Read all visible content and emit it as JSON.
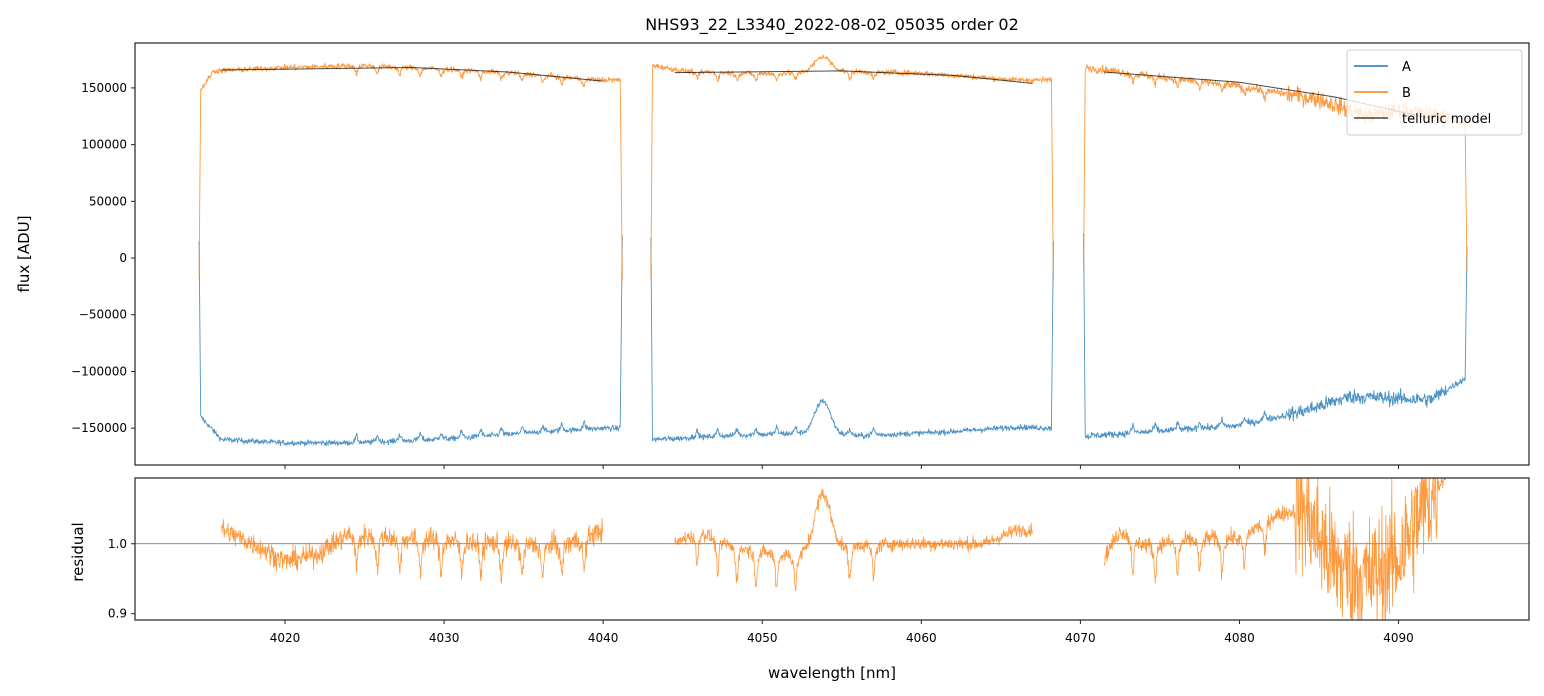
{
  "chart_data": [
    {
      "type": "line",
      "panel": "top",
      "title": "NHS93_22_L3340_2022-08-02_05035  order 02",
      "xlabel": "",
      "ylabel": "flux [ADU]",
      "xlim": [
        4010.57,
        4098.2
      ],
      "ylim": [
        -182500,
        189600
      ],
      "xticks": [
        4020,
        4030,
        4040,
        4050,
        4060,
        4070,
        4080,
        4090
      ],
      "yticks": [
        -150000,
        -100000,
        -50000,
        0,
        50000,
        100000,
        150000
      ],
      "ytick_labels": [
        "−150000",
        "−100000",
        "−50000",
        "0",
        "50000",
        "100000",
        "150000"
      ],
      "legend": {
        "placement": "top-right",
        "entries": [
          "A",
          "B",
          "telluric model"
        ]
      },
      "colors": {
        "A": "#1f77b4",
        "B": "#ff7f0e",
        "telluric": "#000000"
      },
      "series": [
        {
          "name": "A",
          "segments": [
            {
              "range": [
                4014.6,
                4041.2
              ],
              "edges": [
                15000,
                20000
              ],
              "noise": 1200,
              "line_sign": 1,
              "line_depth": 6000,
              "points": [
                [
                  4014.7,
                  -140000
                ],
                [
                  4016,
                  -160000
                ],
                [
                  4020,
                  -163000
                ],
                [
                  4025,
                  -163000
                ],
                [
                  4030,
                  -160000
                ],
                [
                  4035,
                  -155000
                ],
                [
                  4040,
                  -150000
                ],
                [
                  4041.1,
                  -150000
                ]
              ]
            },
            {
              "range": [
                4043.0,
                4068.3
              ],
              "edges": [
                18000,
                15000
              ],
              "noise": 1200,
              "line_sign": 1,
              "line_depth": 6000,
              "points": [
                [
                  4043.1,
                  -160000
                ],
                [
                  4048,
                  -157000
                ],
                [
                  4052,
                  -155000
                ],
                [
                  4056,
                  -157000
                ],
                [
                  4062,
                  -153000
                ],
                [
                  4066,
                  -149000
                ],
                [
                  4068.2,
                  -150000
                ]
              ]
            },
            {
              "range": [
                4070.2,
                4094.3
              ],
              "edges": [
                22000,
                10000
              ],
              "noise": 1500,
              "line_sign": 1,
              "line_depth": 6000,
              "points": [
                [
                  4070.3,
                  -157000
                ],
                [
                  4075,
                  -153000
                ],
                [
                  4080,
                  -148000
                ],
                [
                  4084,
                  -135000
                ],
                [
                  4087,
                  -122000
                ],
                [
                  4092,
                  -125000
                ],
                [
                  4094.2,
                  -106000
                ]
              ]
            }
          ]
        },
        {
          "name": "B",
          "segments": [
            {
              "range": [
                4014.6,
                4041.2
              ],
              "edges": [
                -18000,
                -20000
              ],
              "noise": 1200,
              "line_sign": -1,
              "line_depth": 7000,
              "points": [
                [
                  4014.7,
                  148000
                ],
                [
                  4015.5,
                  165000
                ],
                [
                  4020,
                  168000
                ],
                [
                  4025,
                  170000
                ],
                [
                  4030,
                  167000
                ],
                [
                  4035,
                  163000
                ],
                [
                  4040,
                  157000
                ],
                [
                  4041.1,
                  157000
                ]
              ]
            },
            {
              "range": [
                4043.0,
                4068.3
              ],
              "edges": [
                -18000,
                -20000
              ],
              "noise": 1200,
              "line_sign": -1,
              "line_depth": 7000,
              "points": [
                [
                  4043.1,
                  170000
                ],
                [
                  4045,
                  165000
                ],
                [
                  4050,
                  163000
                ],
                [
                  4055,
                  165000
                ],
                [
                  4060,
                  163000
                ],
                [
                  4066,
                  157000
                ],
                [
                  4068.2,
                  157000
                ]
              ]
            },
            {
              "range": [
                4070.2,
                4094.3
              ],
              "edges": [
                -10000,
                -12000
              ],
              "noise": 1800,
              "line_sign": -1,
              "line_depth": 7000,
              "points": [
                [
                  4070.3,
                  168000
                ],
                [
                  4075,
                  160000
                ],
                [
                  4080,
                  152000
                ],
                [
                  4085,
                  140000
                ],
                [
                  4088,
                  125000
                ],
                [
                  4090,
                  130000
                ],
                [
                  4093,
                  125000
                ],
                [
                  4094.2,
                  118000
                ]
              ]
            }
          ]
        },
        {
          "name": "telluric model",
          "segments": [
            {
              "points": [
                [
                  4016,
                  165800
                ],
                [
                  4028,
                  168000
                ],
                [
                  4034,
                  164000
                ],
                [
                  4040,
                  156000
                ]
              ]
            },
            {
              "points": [
                [
                  4044.5,
                  163500
                ],
                [
                  4055,
                  165000
                ],
                [
                  4062,
                  161000
                ],
                [
                  4067,
                  154000
                ]
              ]
            },
            {
              "points": [
                [
                  4071.5,
                  164000
                ],
                [
                  4080,
                  155000
                ],
                [
                  4086,
                  142000
                ],
                [
                  4092,
                  123000
                ]
              ]
            }
          ]
        }
      ],
      "features": {
        "line_centers": [
          4024.5,
          4025.8,
          4027.2,
          4028.5,
          4029.8,
          4031.1,
          4032.3,
          4033.6,
          4034.9,
          4036.2,
          4037.4,
          4038.8,
          4045.9,
          4047.2,
          4048.4,
          4049.6,
          4050.9,
          4052.1,
          4055.5,
          4057.0,
          4073.3,
          4074.7,
          4076.1,
          4077.5,
          4078.9,
          4080.3,
          4081.6
        ],
        "emission_bump": {
          "center": 4053.8,
          "width": 0.7,
          "A_amplitude": 30000,
          "B_amplitude": 13000
        }
      }
    },
    {
      "type": "line",
      "panel": "bottom",
      "xlabel": "wavelength [nm]",
      "ylabel": "residual",
      "xlim": [
        4010.57,
        4098.2
      ],
      "ylim": [
        0.891,
        1.094
      ],
      "xticks": [
        4020,
        4030,
        4040,
        4050,
        4060,
        4070,
        4080,
        4090
      ],
      "yticks": [
        0.9,
        1.0
      ],
      "ytick_labels": [
        "0.9",
        "1.0"
      ],
      "reference_line": 1.0,
      "series": [
        {
          "name": "B residual",
          "color": "#ff7f0e",
          "segments": [
            {
              "range": [
                4016.0,
                4040.0
              ],
              "noise": 0.008,
              "line_depth": 0.05,
              "points": [
                [
                  4016,
                  1.02
                ],
                [
                  4018,
                  1.0
                ],
                [
                  4020,
                  0.975
                ],
                [
                  4022,
                  0.985
                ],
                [
                  4024,
                  1.015
                ],
                [
                  4028,
                  1.01
                ],
                [
                  4032,
                  1.005
                ],
                [
                  4036,
                  1.0
                ],
                [
                  4038,
                  1.005
                ],
                [
                  4040,
                  1.02
                ]
              ]
            },
            {
              "range": [
                4044.5,
                4067.0
              ],
              "noise": 0.005,
              "line_depth": 0.05,
              "points": [
                [
                  4044.5,
                  1.0
                ],
                [
                  4046,
                  1.02
                ],
                [
                  4048,
                  1.0
                ],
                [
                  4050,
                  0.99
                ],
                [
                  4052,
                  0.985
                ],
                [
                  4056,
                  1.0
                ],
                [
                  4064,
                  1.0
                ],
                [
                  4066,
                  1.02
                ],
                [
                  4067,
                  1.02
                ]
              ]
            },
            {
              "range": [
                4071.5,
                4093.0
              ],
              "noise": 0.006,
              "line_depth": 0.05,
              "points": [
                [
                  4071.5,
                  0.98
                ],
                [
                  4072.5,
                  1.02
                ],
                [
                  4074,
                  1.0
                ],
                [
                  4078,
                  1.01
                ],
                [
                  4080,
                  1.01
                ],
                [
                  4082,
                  1.04
                ],
                [
                  4084,
                  1.05
                ],
                [
                  4086,
                  0.97
                ],
                [
                  4088,
                  0.95
                ],
                [
                  4090,
                  0.98
                ],
                [
                  4091.5,
                  1.05
                ],
                [
                  4093,
                  1.1
                ]
              ],
              "high_noise_range": [
                4083.5,
                4092.5
              ],
              "high_noise": 0.045
            }
          ]
        }
      ]
    }
  ]
}
